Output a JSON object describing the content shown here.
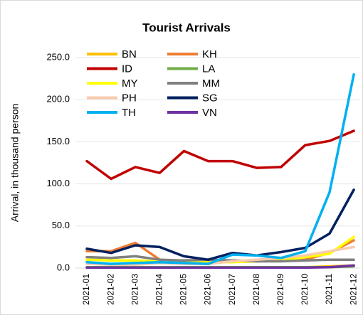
{
  "chart_data": {
    "type": "line",
    "title": "Tourist Arrivals",
    "y_label": "Arrival, in thousand person",
    "categories": [
      "2021-01",
      "2021-02",
      "2021-03",
      "2021-04",
      "2021-05",
      "2021-06",
      "2021-07",
      "2021-08",
      "2021-09",
      "2021-10",
      "2021-11",
      "2021-12"
    ],
    "ylim": [
      0,
      250
    ],
    "yticks": [
      {
        "value": 0,
        "label": "0.0"
      },
      {
        "value": 50,
        "label": "50.0"
      },
      {
        "value": 100,
        "label": "100.0"
      },
      {
        "value": 150,
        "label": "150.0"
      },
      {
        "value": 200,
        "label": "200.0"
      },
      {
        "value": 250,
        "label": "250.0"
      }
    ],
    "grid": true,
    "series": [
      {
        "name": "BN",
        "color": "#FFC000",
        "values": [
          1,
          1,
          1,
          1,
          1,
          1,
          1,
          1,
          1,
          1,
          2,
          3
        ]
      },
      {
        "name": "KH",
        "color": "#ED7D31",
        "values": [
          20,
          20,
          30,
          10,
          8,
          7,
          9,
          8,
          9,
          10,
          18,
          33
        ]
      },
      {
        "name": "ID",
        "color": "#C00000",
        "values": [
          127,
          106,
          120,
          113,
          139,
          127,
          127,
          119,
          120,
          146,
          151,
          163
        ]
      },
      {
        "name": "LA",
        "color": "#70AD47",
        "values": [
          1,
          1,
          1,
          1,
          1,
          1,
          1,
          1,
          1,
          1,
          1,
          2
        ]
      },
      {
        "name": "MY",
        "color": "#FFFF00",
        "values": [
          10,
          9,
          9,
          8,
          7,
          7,
          7,
          8,
          9,
          13,
          17,
          37
        ]
      },
      {
        "name": "MM",
        "color": "#808080",
        "values": [
          13,
          12,
          14,
          10,
          9,
          10,
          9,
          8,
          8,
          9,
          10,
          10
        ]
      },
      {
        "name": "PH",
        "color": "#F8CBAD",
        "values": [
          5,
          4,
          4,
          6,
          5,
          5,
          8,
          10,
          12,
          15,
          20,
          25
        ]
      },
      {
        "name": "SG",
        "color": "#002060",
        "values": [
          23,
          18,
          27,
          25,
          14,
          10,
          18,
          15,
          19,
          24,
          41,
          93
        ]
      },
      {
        "name": "TH",
        "color": "#00B0F0",
        "values": [
          7,
          5,
          6,
          7,
          6,
          5,
          16,
          15,
          12,
          20,
          90,
          230
        ]
      },
      {
        "name": "VN",
        "color": "#7030A0",
        "values": [
          0.5,
          0.5,
          0.5,
          0.5,
          0.5,
          0.5,
          0.5,
          0.5,
          0.5,
          0.5,
          1,
          3
        ]
      }
    ]
  }
}
